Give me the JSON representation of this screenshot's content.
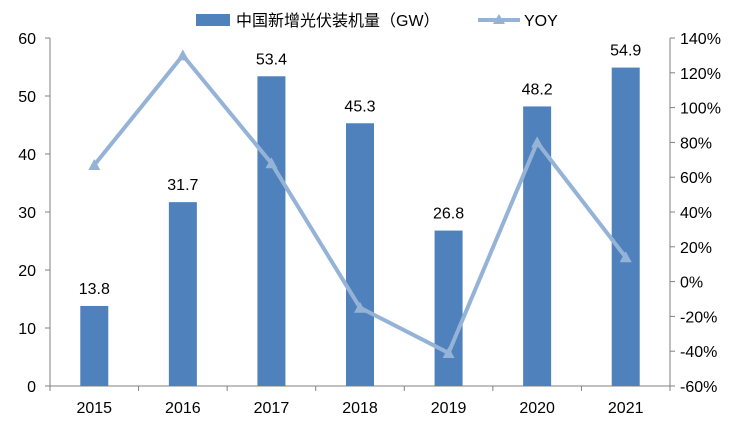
{
  "chart_data": {
    "type": "bar",
    "categories": [
      "2015",
      "2016",
      "2017",
      "2018",
      "2019",
      "2020",
      "2021"
    ],
    "series": [
      {
        "name": "中国新增光伏装机量（GW）",
        "type": "bar",
        "axis": "left",
        "values": [
          13.8,
          31.7,
          53.4,
          45.3,
          26.8,
          48.2,
          54.9
        ],
        "data_labels": [
          "13.8",
          "31.7",
          "53.4",
          "45.3",
          "26.8",
          "48.2",
          "54.9"
        ],
        "color": "#4f81bd"
      },
      {
        "name": "YOY",
        "type": "line",
        "axis": "right",
        "values": [
          67,
          130,
          68,
          -15,
          -41,
          80,
          14
        ],
        "color": "#95b3d7"
      }
    ],
    "y_left": {
      "ylim": [
        0,
        60
      ],
      "ticks": [
        "0",
        "10",
        "20",
        "30",
        "40",
        "50",
        "60"
      ]
    },
    "y_right": {
      "ylim": [
        -60,
        140
      ],
      "ticks": [
        "-60%",
        "-40%",
        "-20%",
        "0%",
        "20%",
        "40%",
        "60%",
        "80%",
        "100%",
        "120%",
        "140%"
      ]
    },
    "legend": "top-center",
    "grid": false
  }
}
